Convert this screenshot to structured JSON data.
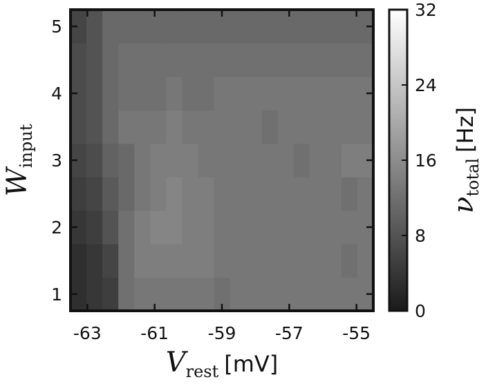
{
  "chart_data": {
    "type": "heatmap",
    "x": [
      -63.5,
      -63,
      -62.5,
      -62,
      -61.5,
      -61,
      -60.5,
      -60,
      -59.5,
      -59,
      -58.5,
      -58,
      -57.5,
      -57,
      -56.5,
      -56,
      -55.5,
      -55,
      -54.5
    ],
    "y": [
      1,
      1.5,
      2,
      2.5,
      3,
      3.5,
      4,
      4.5,
      5
    ],
    "values": [
      [
        3,
        4,
        5,
        12,
        13,
        13,
        13,
        13,
        13,
        12,
        13,
        13,
        13,
        13,
        13,
        13,
        13,
        13,
        13
      ],
      [
        3,
        4,
        6,
        12,
        14,
        14,
        14,
        14,
        14,
        13,
        13,
        13,
        13,
        13,
        13,
        13,
        13,
        12,
        13
      ],
      [
        4,
        5,
        8,
        12,
        14,
        15,
        15,
        14,
        14,
        13,
        13,
        13,
        13,
        13,
        13,
        13,
        13,
        13,
        13
      ],
      [
        5,
        6,
        9,
        11,
        13,
        14,
        15,
        14,
        14,
        13,
        13,
        13,
        13,
        13,
        13,
        13,
        13,
        12,
        13
      ],
      [
        6,
        7,
        10,
        11,
        13,
        14,
        14,
        14,
        13,
        13,
        13,
        13,
        13,
        13,
        12,
        13,
        13,
        14,
        14
      ],
      [
        7,
        8,
        11,
        13,
        13,
        13,
        14,
        13,
        13,
        13,
        13,
        13,
        12,
        13,
        13,
        13,
        13,
        13,
        13
      ],
      [
        7,
        8,
        11,
        12,
        12,
        12,
        13,
        12,
        12,
        13,
        13,
        13,
        13,
        13,
        13,
        13,
        13,
        13,
        13
      ],
      [
        7,
        8,
        11,
        12,
        12,
        12,
        12,
        12,
        12,
        12,
        12,
        12,
        12,
        12,
        12,
        12,
        12,
        12,
        12
      ],
      [
        6,
        8,
        11,
        11,
        11,
        11,
        11,
        11,
        11,
        11,
        11,
        11,
        11,
        11,
        11,
        11,
        11,
        11,
        11
      ]
    ],
    "xticks": [
      "-63",
      "-61",
      "-59",
      "-57",
      "-55"
    ],
    "yticks": [
      "1",
      "2",
      "3",
      "4",
      "5"
    ],
    "xlim": [
      -63.5,
      -54.5
    ],
    "ylim": [
      0.75,
      5.25
    ],
    "xlabel": {
      "symbol": "V",
      "subscript": "rest",
      "unit": "[mV]"
    },
    "ylabel": {
      "symbol": "W",
      "subscript": "input"
    },
    "colorbar": {
      "range": [
        0,
        32
      ],
      "ticks": [
        "0",
        "8",
        "16",
        "24",
        "32"
      ],
      "label": {
        "symbol": "ν",
        "subscript": "total",
        "unit": "[Hz]"
      },
      "colormap": [
        "#1a1a1a",
        "#ffffff"
      ]
    }
  }
}
